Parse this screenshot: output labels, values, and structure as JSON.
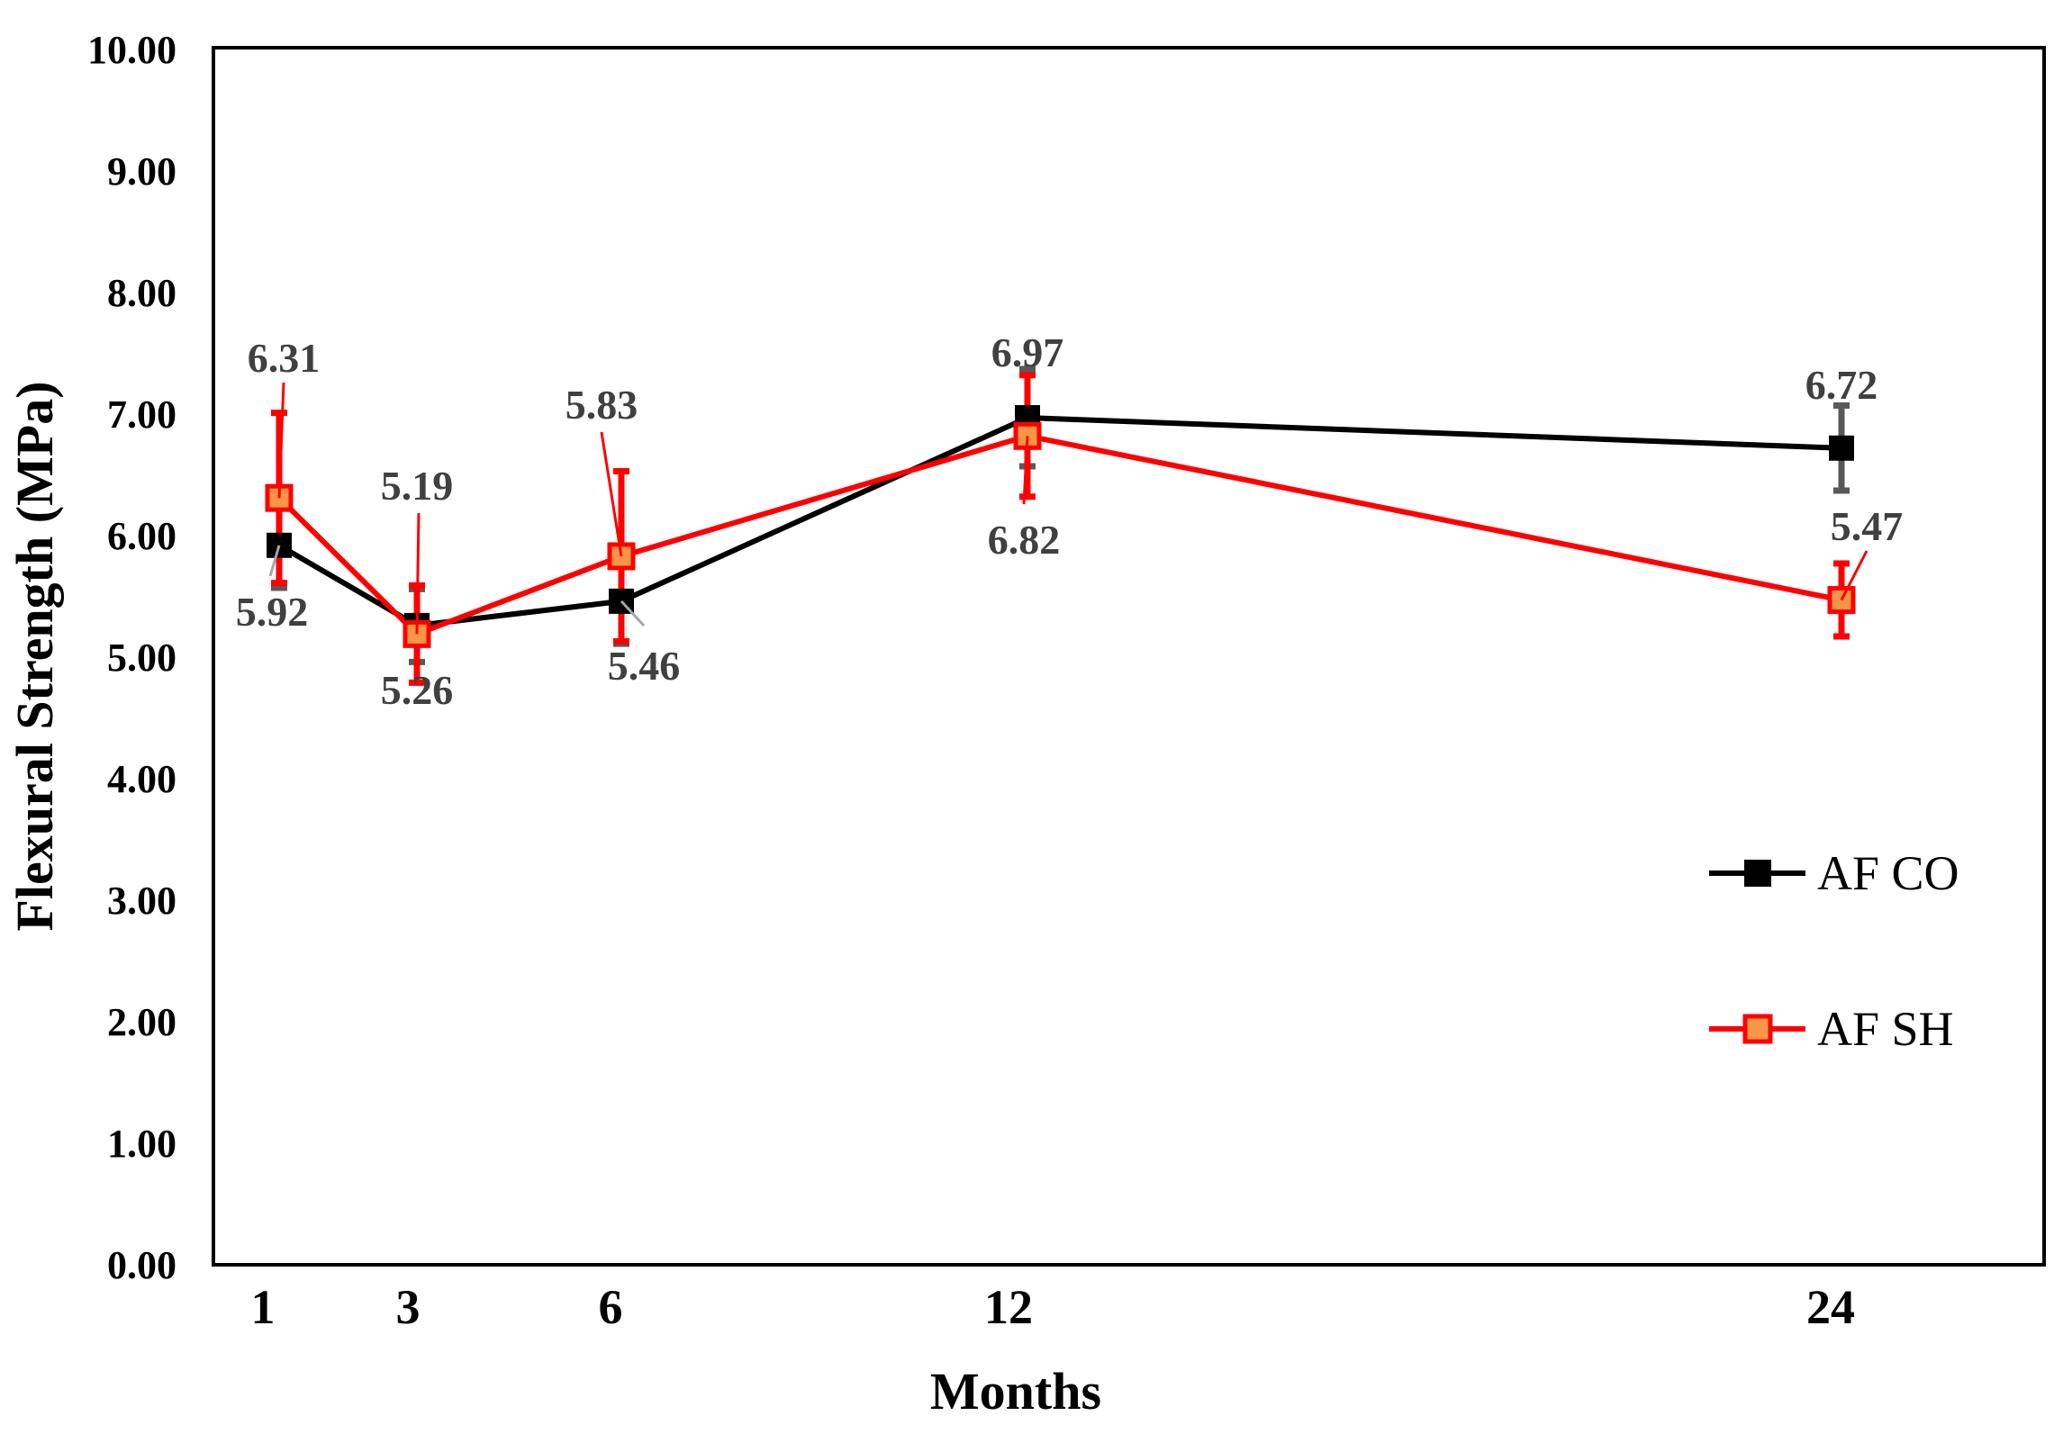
{
  "chart_data": {
    "type": "line",
    "title": "",
    "xlabel": "Months",
    "ylabel": "Flexural Strength (MPa)",
    "x": [
      1,
      3,
      6,
      12,
      24
    ],
    "x_tick_labels": [
      "1",
      "3",
      "6",
      "12",
      "24"
    ],
    "ylim": [
      0,
      10
    ],
    "y_tick_labels": [
      "0.00",
      "1.00",
      "2.00",
      "3.00",
      "4.00",
      "5.00",
      "6.00",
      "7.00",
      "8.00",
      "9.00",
      "10.00"
    ],
    "grid": false,
    "legend_position": "right",
    "series": [
      {
        "name": "AF CO",
        "color": "#000000",
        "marker_fill": "#000000",
        "error_color": "#595959",
        "values": [
          5.92,
          5.26,
          5.46,
          6.97,
          6.72
        ],
        "labels": [
          "5.92",
          "5.26",
          "5.46",
          "6.97",
          "6.72"
        ],
        "errors": [
          0.35,
          0.3,
          0.35,
          0.4,
          0.35
        ]
      },
      {
        "name": "AF SH",
        "color": "#ff0000",
        "marker_fill": "#f79646",
        "error_color": "#ff0000",
        "values": [
          6.31,
          5.19,
          5.83,
          6.82,
          5.47
        ],
        "labels": [
          "6.31",
          "5.19",
          "5.83",
          "6.82",
          "5.47"
        ],
        "errors": [
          0.7,
          0.4,
          0.7,
          0.5,
          0.3
        ]
      }
    ]
  }
}
